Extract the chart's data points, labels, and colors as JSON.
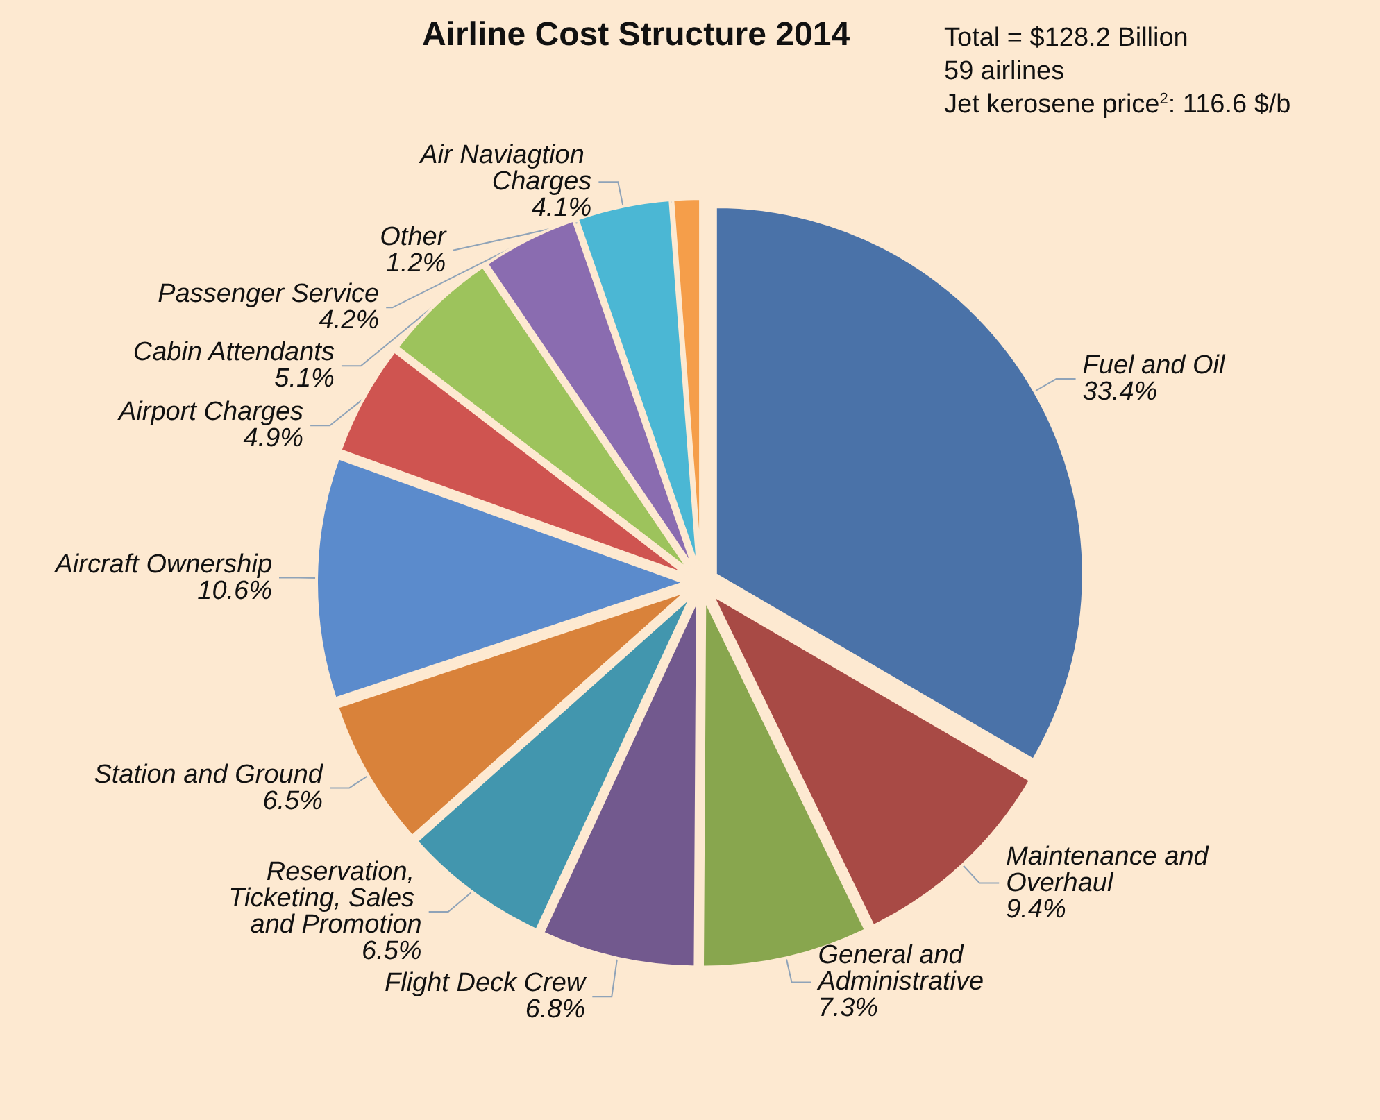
{
  "chart_data": {
    "type": "pie",
    "title": "Airline Cost Structure 2014",
    "categories": [
      "Fuel and Oil",
      "Maintenance and Overhaul",
      "General and Administrative",
      "Flight Deck Crew",
      "Reservation, Ticketing, Sales and Promotion",
      "Station and Ground",
      "Aircraft Ownership",
      "Airport Charges",
      "Cabin Attendants",
      "Passenger Service",
      "Air Naviagtion Charges",
      "Other"
    ],
    "values": [
      33.4,
      9.4,
      7.3,
      6.8,
      6.5,
      6.5,
      10.6,
      4.9,
      5.1,
      4.2,
      4.1,
      1.2
    ],
    "colors": [
      "#4a72a8",
      "#a84a45",
      "#88a64e",
      "#72598e",
      "#4296ae",
      "#d9823a",
      "#5b8bcc",
      "#cf5450",
      "#9dc35c",
      "#8a6cb0",
      "#4bb7d4",
      "#f59e4a"
    ],
    "value_labels": [
      "33.4%",
      "9.4%",
      "7.3%",
      "6.8%",
      "6.5%",
      "6.5%",
      "10.6%",
      "4.9%",
      "5.1%",
      "4.2%",
      "4.1%",
      "1.2%"
    ],
    "annotations": [
      "Total = $128.2 Billion",
      "59 airlines",
      "Jet kerosene price$^{2}$: 116.6 $/b"
    ]
  }
}
